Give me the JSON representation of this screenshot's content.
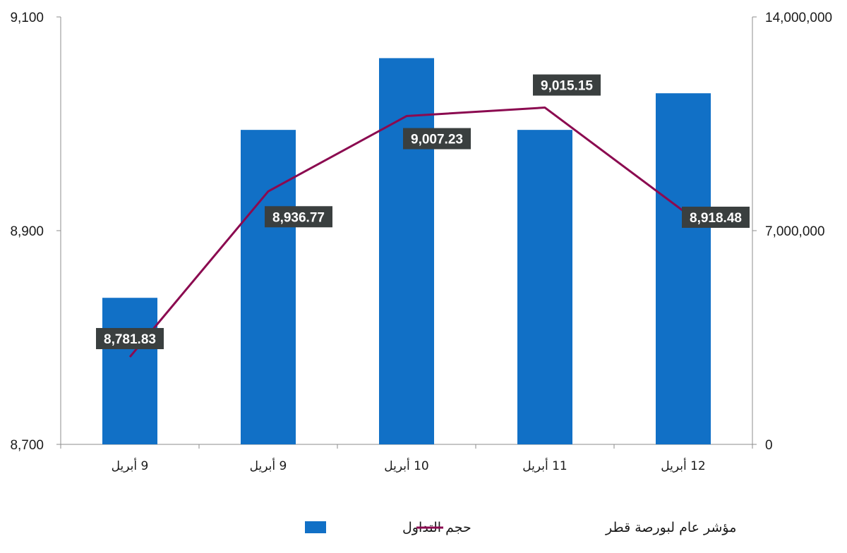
{
  "chart_data": {
    "type": "bar+line",
    "categories": [
      "9 أبريل",
      "9 أبريل",
      "10 أبريل",
      "11 أبريل",
      "12 أبريل"
    ],
    "series": [
      {
        "name": "حجم التداول",
        "type": "bar",
        "axis": "right",
        "color": "#1170c6",
        "values": [
          4800000,
          10300000,
          12650000,
          10300000,
          11500000
        ]
      },
      {
        "name": "مؤشر عام لبورصة قطر",
        "type": "line",
        "axis": "left",
        "color": "#8b0a50",
        "values": [
          8781.83,
          8936.77,
          9007.23,
          9015.15,
          8918.48
        ],
        "data_labels": [
          "8,781.83",
          "8,936.77",
          "9,007.23",
          "9,015.15",
          "8,918.48"
        ]
      }
    ],
    "y_left": {
      "ylim": [
        8700,
        9100
      ],
      "ticks": [
        "8,700",
        "8,900",
        "9,100"
      ],
      "tick_values": [
        8700,
        8900,
        9100
      ]
    },
    "y_right": {
      "ylim": [
        0,
        14000000
      ],
      "ticks": [
        "0",
        "7,000,000",
        "14,000,000"
      ],
      "tick_values": [
        0,
        7000000,
        14000000
      ]
    },
    "grid": false,
    "legend_position": "bottom",
    "label_box_color": "#3a3f3f"
  }
}
